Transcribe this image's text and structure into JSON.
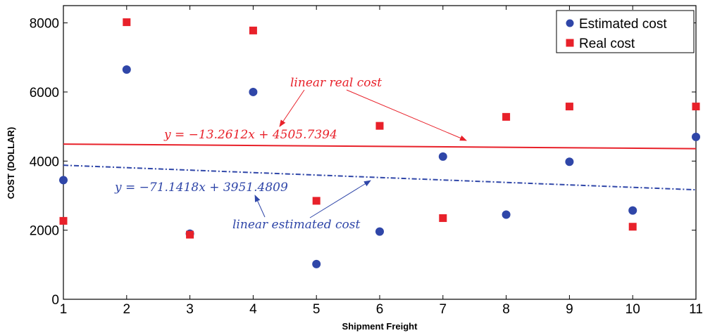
{
  "chart_data": {
    "type": "scatter",
    "title": "",
    "xlabel": "Shipment Freight",
    "ylabel": "COST (DOLLAR)",
    "xlim": [
      1,
      11
    ],
    "ylim": [
      0,
      8500
    ],
    "x_ticks": [
      "1",
      "2",
      "3",
      "4",
      "5",
      "6",
      "7",
      "8",
      "9",
      "10",
      "11"
    ],
    "y_ticks": [
      "0",
      "2000",
      "4000",
      "6000",
      "8000"
    ],
    "grid": false,
    "legend_position": "top-right",
    "x": [
      1,
      2,
      3,
      4,
      5,
      6,
      7,
      8,
      9,
      10,
      11
    ],
    "series": [
      {
        "name": "Estimated cost",
        "marker": "circle",
        "color": "#2f46a8",
        "values": [
          3450,
          6650,
          1900,
          6000,
          1020,
          1960,
          4130,
          2450,
          3980,
          2570,
          4700
        ]
      },
      {
        "name": "Real cost",
        "marker": "square",
        "color": "#e8212a",
        "values": [
          2270,
          8020,
          1870,
          7780,
          2850,
          5020,
          2350,
          5280,
          5580,
          2100,
          5580
        ]
      }
    ],
    "trendlines": [
      {
        "series": "Real cost",
        "slope": -13.2612,
        "intercept": 4505.7394,
        "style": "solid",
        "color": "#e8212a",
        "equation": "y = −13.2612x + 4505.7394",
        "label": "linear real cost"
      },
      {
        "series": "Estimated cost",
        "slope": -71.1418,
        "intercept": 3951.4809,
        "style": "dash-dot",
        "color": "#2f46a8",
        "equation": "y = −71.1418x + 3951.4809",
        "label": "linear estimated cost"
      }
    ]
  }
}
